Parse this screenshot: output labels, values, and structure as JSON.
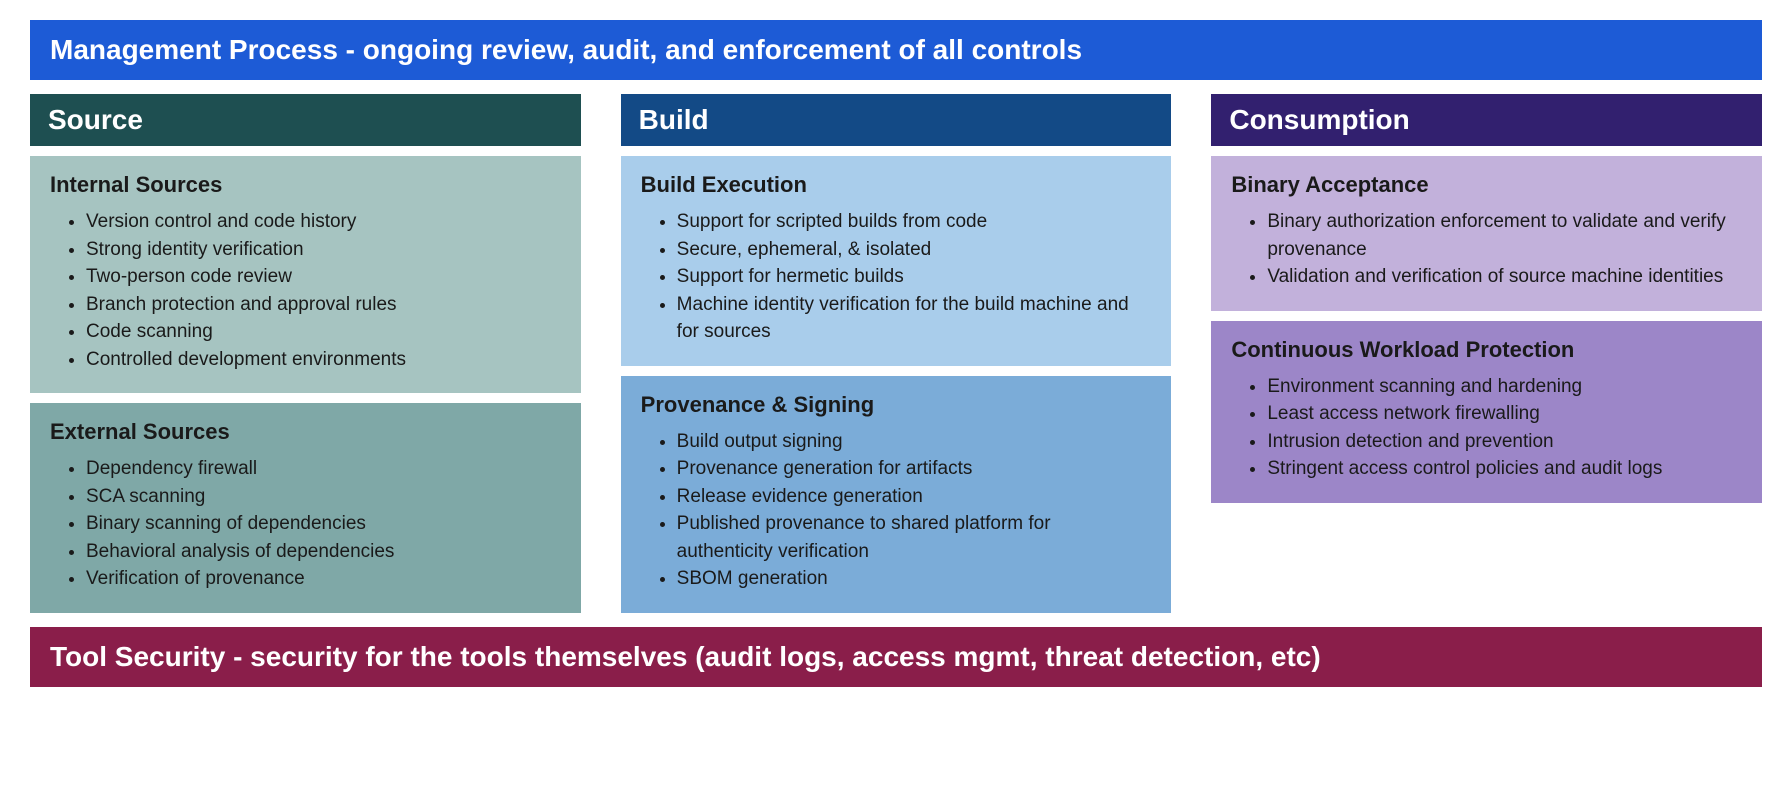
{
  "type": "infographic",
  "layout": "three-column-cards-with-bands",
  "background_color": "#ffffff",
  "text_color": "#1a1a1a",
  "header_text_color": "#ffffff",
  "title_fontsize": 28,
  "card_title_fontsize": 22,
  "body_fontsize": 19,
  "top_banner": {
    "text": "Management Process - ongoing review, audit, and enforcement of all controls",
    "bg": "#1d5bd6"
  },
  "bottom_banner": {
    "text": "Tool Security - security for the tools themselves (audit logs, access mgmt, threat detection, etc)",
    "bg": "#8a1e4a"
  },
  "columns": [
    {
      "title": "Source",
      "header_bg": "#1e4f51",
      "cards": [
        {
          "title": "Internal Sources",
          "bg": "#a6c4c1",
          "items": [
            "Version control and code history",
            "Strong identity verification",
            "Two-person code review",
            "Branch protection and approval rules",
            "Code scanning",
            "Controlled development environments"
          ]
        },
        {
          "title": "External Sources",
          "bg": "#7fa8a7",
          "items": [
            "Dependency firewall",
            "SCA scanning",
            "Binary scanning of dependencies",
            "Behavioral analysis of dependencies",
            "Verification of provenance"
          ]
        }
      ]
    },
    {
      "title": "Build",
      "header_bg": "#134a86",
      "cards": [
        {
          "title": "Build Execution",
          "bg": "#a9cdeb",
          "items": [
            "Support for scripted builds from code",
            "Secure, ephemeral, & isolated",
            "Support for hermetic builds",
            "Machine identity verification for the build machine and for sources"
          ]
        },
        {
          "title": "Provenance & Signing",
          "bg": "#7bacd8",
          "items": [
            "Build output signing",
            "Provenance generation for artifacts",
            "Release evidence generation",
            "Published provenance to shared platform for authenticity verification",
            "SBOM generation"
          ]
        }
      ]
    },
    {
      "title": "Consumption",
      "header_bg": "#32206f",
      "cards": [
        {
          "title": "Binary Acceptance",
          "bg": "#c2b1db",
          "items": [
            "Binary authorization enforcement to validate and verify provenance",
            "Validation and verification of source machine identities"
          ]
        },
        {
          "title": "Continuous Workload Protection",
          "bg": "#9c86c8",
          "items": [
            "Environment scanning and hardening",
            "Least access network firewalling",
            "Intrusion detection and prevention",
            "Stringent access control policies and audit logs"
          ]
        }
      ]
    }
  ]
}
